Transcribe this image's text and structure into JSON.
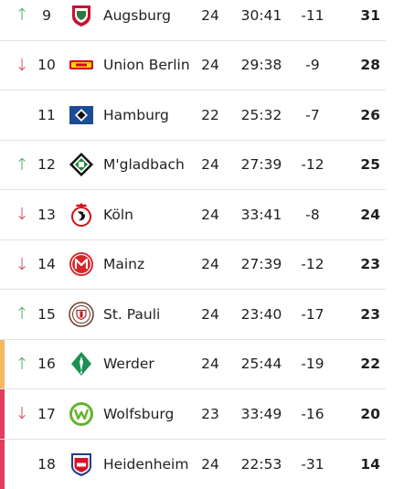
{
  "colors": {
    "up": "#3aa657",
    "down": "#c6414f",
    "playoff_zone": "#f4b860",
    "relegation_zone": "#e23c62"
  },
  "rows": [
    {
      "trend": "up",
      "trend_symbol": "↑",
      "rank": "9",
      "team": "Augsburg",
      "crest": "augsburg-crest-icon",
      "played": "24",
      "goals": "30:41",
      "diff": "-11",
      "points": "31",
      "zone": ""
    },
    {
      "trend": "down",
      "trend_symbol": "↓",
      "rank": "10",
      "team": "Union Berlin",
      "crest": "union-berlin-crest-icon",
      "played": "24",
      "goals": "29:38",
      "diff": "-9",
      "points": "28",
      "zone": ""
    },
    {
      "trend": "",
      "trend_symbol": "",
      "rank": "11",
      "team": "Hamburg",
      "crest": "hamburg-crest-icon",
      "played": "22",
      "goals": "25:32",
      "diff": "-7",
      "points": "26",
      "zone": ""
    },
    {
      "trend": "up",
      "trend_symbol": "↑",
      "rank": "12",
      "team": "M'gladbach",
      "crest": "gladbach-crest-icon",
      "played": "24",
      "goals": "27:39",
      "diff": "-12",
      "points": "25",
      "zone": ""
    },
    {
      "trend": "down",
      "trend_symbol": "↓",
      "rank": "13",
      "team": "Köln",
      "crest": "koeln-crest-icon",
      "played": "24",
      "goals": "33:41",
      "diff": "-8",
      "points": "24",
      "zone": ""
    },
    {
      "trend": "down",
      "trend_symbol": "↓",
      "rank": "14",
      "team": "Mainz",
      "crest": "mainz-crest-icon",
      "played": "24",
      "goals": "27:39",
      "diff": "-12",
      "points": "23",
      "zone": ""
    },
    {
      "trend": "up",
      "trend_symbol": "↑",
      "rank": "15",
      "team": "St. Pauli",
      "crest": "st-pauli-crest-icon",
      "played": "24",
      "goals": "23:40",
      "diff": "-17",
      "points": "23",
      "zone": ""
    },
    {
      "trend": "up",
      "trend_symbol": "↑",
      "rank": "16",
      "team": "Werder",
      "crest": "werder-crest-icon",
      "played": "24",
      "goals": "25:44",
      "diff": "-19",
      "points": "22",
      "zone": "playoff"
    },
    {
      "trend": "down",
      "trend_symbol": "↓",
      "rank": "17",
      "team": "Wolfsburg",
      "crest": "wolfsburg-crest-icon",
      "played": "23",
      "goals": "33:49",
      "diff": "-16",
      "points": "20",
      "zone": "relegation"
    },
    {
      "trend": "",
      "trend_symbol": "",
      "rank": "18",
      "team": "Heidenheim",
      "crest": "heidenheim-crest-icon",
      "played": "24",
      "goals": "22:53",
      "diff": "-31",
      "points": "14",
      "zone": "relegation"
    }
  ]
}
